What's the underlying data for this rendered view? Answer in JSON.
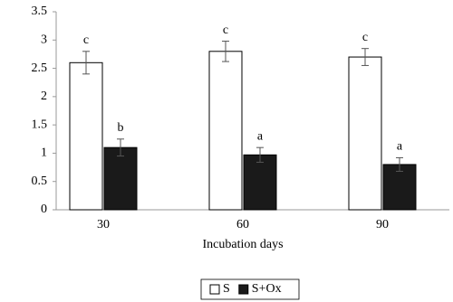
{
  "chart_data": {
    "type": "bar",
    "x_label": "Incubation days",
    "categories": [
      "30",
      "60",
      "90"
    ],
    "series": [
      {
        "name": "S",
        "color": "#ffffff",
        "values": [
          2.6,
          2.8,
          2.7
        ],
        "errors": [
          0.2,
          0.18,
          0.15
        ],
        "labels": [
          "c",
          "c",
          "c"
        ]
      },
      {
        "name": "S+Ox",
        "color": "#1a1a1a",
        "values": [
          1.1,
          0.97,
          0.8
        ],
        "errors": [
          0.15,
          0.13,
          0.12
        ],
        "labels": [
          "b",
          "a",
          "a"
        ]
      }
    ],
    "ylim": [
      0,
      3.5
    ],
    "yticks": [
      0,
      0.5,
      1,
      1.5,
      2,
      2.5,
      3,
      3.5
    ],
    "grid": false,
    "legend": "bottom"
  }
}
